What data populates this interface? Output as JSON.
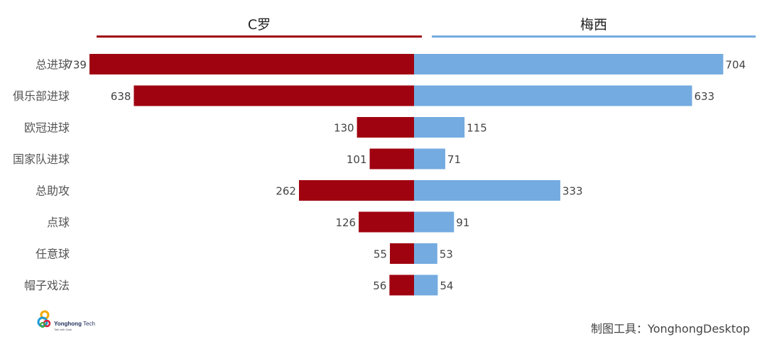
{
  "chart_data": {
    "type": "bar",
    "orientation": "horizontal-butterfly",
    "categories": [
      "总进球",
      "俱乐部进球",
      "欧冠进球",
      "国家队进球",
      "总助攻",
      "点球",
      "任意球",
      "帽子戏法"
    ],
    "series": [
      {
        "name": "C罗",
        "color": "#a00310",
        "values": [
          739,
          638,
          130,
          101,
          262,
          126,
          55,
          56
        ]
      },
      {
        "name": "梅西",
        "color": "#74abe0",
        "values": [
          704,
          633,
          115,
          71,
          333,
          91,
          53,
          54
        ]
      }
    ],
    "xlim": [
      0,
      760
    ],
    "grid": false,
    "legend": "top"
  },
  "logo": {
    "name": "Yonghong",
    "suffix": " Tech",
    "tagline": "Talk with Data"
  },
  "footer": "制图工具：YonghongDesktop"
}
